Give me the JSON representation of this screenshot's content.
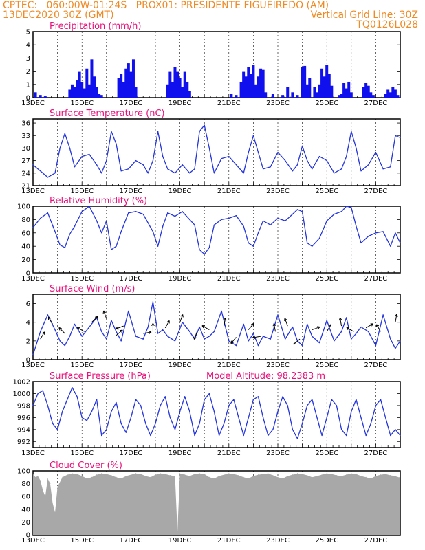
{
  "header": {
    "line1": "CPTEC:   060:00W-01:24S   PROX01: PRESIDENTE FIGUEIREDO (AM)",
    "line2_left": "13DEC2020 30Z (GMT)",
    "line2_right": "Vertical Grid Line: 30Z",
    "line3_right": "TQ0126L028"
  },
  "colors": {
    "header": "#f08a24",
    "title": "#e8107a",
    "line": "#2233dd",
    "bar": "#1010ee",
    "cloud": "#a8a8a8"
  },
  "chart_data": [
    {
      "type": "bar",
      "title": "Precipitation (mm/h)",
      "x_ticks": [
        "13DEC",
        "15DEC",
        "17DEC",
        "19DEC",
        "21DEC",
        "23DEC",
        "25DEC",
        "27DEC"
      ],
      "y_ticks": [
        "0",
        "1",
        "2",
        "3",
        "4",
        "5"
      ],
      "ylim": [
        0,
        5
      ],
      "xlim_days": [
        0,
        15
      ],
      "x_days": [
        0.1,
        0.3,
        0.5,
        1.5,
        1.6,
        1.7,
        1.8,
        1.9,
        2.0,
        2.1,
        2.2,
        2.3,
        2.4,
        2.5,
        2.6,
        2.7,
        2.8,
        3.5,
        3.6,
        3.7,
        3.8,
        3.9,
        4.0,
        4.1,
        4.2,
        5.5,
        5.6,
        5.7,
        5.8,
        5.9,
        6.0,
        6.1,
        6.2,
        6.3,
        6.4,
        8.1,
        8.3,
        8.5,
        8.6,
        8.7,
        8.8,
        8.9,
        9.0,
        9.1,
        9.2,
        9.3,
        9.4,
        9.5,
        9.8,
        10.2,
        10.4,
        10.6,
        10.8,
        11.0,
        11.1,
        11.2,
        11.3,
        11.5,
        11.6,
        11.7,
        11.8,
        11.9,
        12.0,
        12.1,
        12.2,
        12.5,
        12.6,
        12.7,
        12.8,
        12.9,
        13.0,
        13.5,
        13.6,
        13.7,
        13.8,
        13.9,
        14.4,
        14.5,
        14.6,
        14.7,
        14.8,
        14.9
      ],
      "values": [
        0.4,
        0.2,
        0.1,
        0.6,
        1.0,
        0.8,
        1.3,
        2.0,
        1.2,
        0.7,
        2.2,
        1.0,
        2.9,
        1.6,
        0.8,
        0.3,
        0.2,
        1.5,
        1.8,
        1.2,
        2.2,
        2.6,
        2.0,
        2.9,
        0.8,
        1.0,
        2.0,
        1.2,
        2.3,
        2.0,
        1.5,
        0.8,
        2.0,
        1.2,
        0.5,
        0.3,
        0.2,
        1.2,
        2.0,
        1.6,
        2.3,
        1.8,
        2.5,
        1.0,
        1.6,
        2.2,
        2.1,
        0.4,
        0.3,
        0.2,
        0.8,
        0.4,
        0.2,
        2.3,
        2.4,
        1.0,
        1.5,
        0.8,
        0.4,
        1.0,
        2.2,
        1.6,
        2.5,
        1.8,
        0.9,
        0.2,
        0.3,
        1.1,
        0.7,
        1.2,
        0.4,
        0.8,
        1.1,
        0.9,
        0.4,
        0.2,
        0.3,
        0.6,
        0.4,
        0.8,
        0.6,
        0.2
      ]
    },
    {
      "type": "line",
      "title": "Surface Temperature (nC)",
      "x_ticks": [
        "13DEC",
        "15DEC",
        "17DEC",
        "19DEC",
        "21DEC",
        "23DEC",
        "25DEC",
        "27DEC"
      ],
      "y_ticks": [
        "21",
        "24",
        "27",
        "30",
        "33",
        "36"
      ],
      "ylim": [
        21,
        37
      ],
      "xlim_days": [
        0,
        15
      ],
      "x_days": [
        0,
        0.3,
        0.6,
        0.9,
        1.1,
        1.3,
        1.5,
        1.7,
        2.0,
        2.3,
        2.6,
        2.8,
        3.0,
        3.2,
        3.4,
        3.6,
        3.9,
        4.2,
        4.5,
        4.7,
        4.9,
        5.1,
        5.3,
        5.5,
        5.8,
        6.1,
        6.4,
        6.6,
        6.8,
        7.0,
        7.2,
        7.4,
        7.7,
        8.0,
        8.3,
        8.6,
        8.8,
        9.0,
        9.2,
        9.4,
        9.7,
        10.0,
        10.3,
        10.6,
        10.8,
        11.0,
        11.2,
        11.4,
        11.7,
        12.0,
        12.3,
        12.6,
        12.8,
        13.0,
        13.2,
        13.4,
        13.7,
        14.0,
        14.3,
        14.6,
        14.8,
        15.0
      ],
      "values": [
        26,
        24.5,
        23,
        24,
        30,
        33.5,
        30,
        25.5,
        28,
        28.5,
        26,
        24,
        27,
        34,
        31,
        24.5,
        25,
        27,
        26,
        24,
        27,
        34,
        28,
        25,
        24,
        26,
        24,
        25,
        34,
        35.5,
        30,
        24,
        27.5,
        28,
        26,
        24,
        29,
        33,
        29,
        25,
        25.5,
        29,
        27,
        24.5,
        26,
        30.5,
        27,
        25,
        28,
        27,
        24,
        25,
        28,
        34,
        30,
        24.5,
        26,
        29,
        25,
        25.5,
        33,
        32.5
      ]
    },
    {
      "type": "line",
      "title": "Relative Humidity (%)",
      "x_ticks": [
        "13DEC",
        "15DEC",
        "17DEC",
        "19DEC",
        "21DEC",
        "23DEC",
        "25DEC",
        "27DEC"
      ],
      "y_ticks": [
        "0",
        "20",
        "40",
        "60",
        "80",
        "100"
      ],
      "ylim": [
        0,
        100
      ],
      "xlim_days": [
        0,
        15
      ],
      "x_days": [
        0,
        0.3,
        0.6,
        0.9,
        1.1,
        1.3,
        1.5,
        1.7,
        2.0,
        2.3,
        2.6,
        2.8,
        3.0,
        3.2,
        3.4,
        3.6,
        3.9,
        4.2,
        4.5,
        4.7,
        4.9,
        5.1,
        5.3,
        5.5,
        5.8,
        6.1,
        6.4,
        6.6,
        6.8,
        7.0,
        7.2,
        7.4,
        7.7,
        8.0,
        8.3,
        8.6,
        8.8,
        9.0,
        9.2,
        9.4,
        9.7,
        10.0,
        10.3,
        10.6,
        10.8,
        11.0,
        11.2,
        11.4,
        11.7,
        12.0,
        12.3,
        12.6,
        12.8,
        13.0,
        13.2,
        13.4,
        13.7,
        14.0,
        14.3,
        14.6,
        14.8,
        15.0
      ],
      "values": [
        68,
        82,
        90,
        62,
        42,
        38,
        58,
        70,
        92,
        100,
        78,
        60,
        78,
        35,
        40,
        62,
        90,
        92,
        88,
        75,
        62,
        40,
        70,
        90,
        85,
        92,
        80,
        72,
        35,
        28,
        38,
        72,
        80,
        82,
        86,
        70,
        45,
        40,
        60,
        78,
        72,
        82,
        78,
        88,
        95,
        92,
        45,
        40,
        52,
        78,
        88,
        92,
        100,
        98,
        70,
        45,
        55,
        60,
        62,
        40,
        60,
        45
      ]
    },
    {
      "type": "line",
      "title": "Surface Wind (m/s)",
      "x_ticks": [
        "13DEC",
        "15DEC",
        "17DEC",
        "19DEC",
        "21DEC",
        "23DEC",
        "25DEC",
        "27DEC"
      ],
      "y_ticks": [
        "0",
        "2",
        "4",
        "6"
      ],
      "ylim": [
        0,
        7
      ],
      "xlim_days": [
        0,
        15
      ],
      "x_days": [
        0,
        0.3,
        0.6,
        0.9,
        1.1,
        1.3,
        1.5,
        1.7,
        2.0,
        2.3,
        2.6,
        2.8,
        3.0,
        3.2,
        3.4,
        3.6,
        3.9,
        4.2,
        4.5,
        4.7,
        4.9,
        5.1,
        5.3,
        5.5,
        5.8,
        6.1,
        6.4,
        6.6,
        6.8,
        7.0,
        7.2,
        7.4,
        7.7,
        8.0,
        8.3,
        8.6,
        8.8,
        9.0,
        9.2,
        9.4,
        9.7,
        10.0,
        10.3,
        10.6,
        10.8,
        11.0,
        11.2,
        11.4,
        11.7,
        12.0,
        12.3,
        12.6,
        12.8,
        13.0,
        13.2,
        13.4,
        13.7,
        14.0,
        14.3,
        14.6,
        14.8,
        15.0
      ],
      "values": [
        0.5,
        3.0,
        4.8,
        3.2,
        2.0,
        1.5,
        2.5,
        3.8,
        2.5,
        3.5,
        4.5,
        3.0,
        2.2,
        4.2,
        3.0,
        2.0,
        5.2,
        2.5,
        2.2,
        3.5,
        6.2,
        2.8,
        3.2,
        2.5,
        2.0,
        4.0,
        3.0,
        2.2,
        3.5,
        2.2,
        2.5,
        3.0,
        5.2,
        2.0,
        1.5,
        3.8,
        2.0,
        2.8,
        1.5,
        2.5,
        2.2,
        4.8,
        2.2,
        3.5,
        2.0,
        1.5,
        3.8,
        2.5,
        1.8,
        4.2,
        2.0,
        3.0,
        4.5,
        2.2,
        2.8,
        3.5,
        3.0,
        1.5,
        4.8,
        2.2,
        1.2,
        2.0
      ]
    },
    {
      "type": "line",
      "title": "Surface Pressure (hPa)",
      "annotation": "Model Altitude: 98.2383 m",
      "x_ticks": [
        "13DEC",
        "15DEC",
        "17DEC",
        "19DEC",
        "21DEC",
        "23DEC",
        "25DEC",
        "27DEC"
      ],
      "y_ticks": [
        "992",
        "994",
        "996",
        "998",
        "1000",
        "1002"
      ],
      "ylim": [
        991,
        1002
      ],
      "xlim_days": [
        0,
        15
      ],
      "x_days": [
        0,
        0.2,
        0.4,
        0.6,
        0.8,
        1.0,
        1.2,
        1.4,
        1.6,
        1.8,
        2.0,
        2.2,
        2.4,
        2.6,
        2.8,
        3.0,
        3.2,
        3.4,
        3.6,
        3.8,
        4.0,
        4.2,
        4.4,
        4.6,
        4.8,
        5.0,
        5.2,
        5.4,
        5.6,
        5.8,
        6.0,
        6.2,
        6.4,
        6.6,
        6.8,
        7.0,
        7.2,
        7.4,
        7.6,
        7.8,
        8.0,
        8.2,
        8.4,
        8.6,
        8.8,
        9.0,
        9.2,
        9.4,
        9.6,
        9.8,
        10.0,
        10.2,
        10.4,
        10.6,
        10.8,
        11.0,
        11.2,
        11.4,
        11.6,
        11.8,
        12.0,
        12.2,
        12.4,
        12.6,
        12.8,
        13.0,
        13.2,
        13.4,
        13.6,
        13.8,
        14.0,
        14.2,
        14.4,
        14.6,
        14.8,
        15.0
      ],
      "values": [
        998,
        1000,
        1000.5,
        998,
        995,
        994,
        997,
        999,
        1001,
        999.5,
        996,
        995.5,
        997,
        999,
        993,
        994,
        997,
        998.5,
        995,
        993.5,
        996,
        999,
        998,
        995,
        993,
        995,
        998,
        999.5,
        996,
        994,
        997,
        999.5,
        997,
        993,
        995,
        999,
        1000,
        997,
        993,
        995,
        998,
        999,
        996,
        993,
        996,
        999,
        999.5,
        996,
        993,
        994,
        997,
        999.5,
        998,
        994,
        992.5,
        995,
        998,
        999,
        996,
        993,
        996,
        999,
        998,
        994,
        993,
        997,
        999,
        996,
        993,
        995,
        998,
        999,
        996,
        993,
        994,
        993
      ]
    },
    {
      "type": "bar",
      "title": "Cloud Cover (%)",
      "x_ticks": [
        "13DEC",
        "15DEC",
        "17DEC",
        "19DEC",
        "21DEC",
        "23DEC",
        "25DEC",
        "27DEC"
      ],
      "y_ticks": [
        "0",
        "20",
        "40",
        "60",
        "80",
        "100"
      ],
      "ylim": [
        0,
        100
      ],
      "xlim_days": [
        0,
        15
      ],
      "x_days": [
        0,
        0.1,
        0.2,
        0.3,
        0.4,
        0.5,
        0.6,
        0.7,
        0.8,
        0.9,
        1.0,
        1.2,
        1.4,
        1.6,
        1.8,
        2.0,
        2.2,
        2.4,
        2.6,
        2.8,
        3.0,
        3.2,
        3.4,
        3.6,
        3.8,
        4.0,
        4.2,
        4.4,
        4.6,
        4.8,
        5.0,
        5.2,
        5.4,
        5.6,
        5.8,
        5.9,
        6.0,
        6.2,
        6.4,
        6.6,
        6.8,
        7.0,
        7.2,
        7.4,
        7.6,
        7.8,
        8.0,
        8.2,
        8.4,
        8.6,
        8.8,
        9.0,
        9.2,
        9.4,
        9.6,
        9.8,
        10.0,
        10.2,
        10.4,
        10.6,
        10.8,
        11.0,
        11.2,
        11.4,
        11.6,
        11.8,
        12.0,
        12.2,
        12.4,
        12.6,
        12.8,
        13.0,
        13.2,
        13.4,
        13.6,
        13.8,
        14.0,
        14.2,
        14.4,
        14.6,
        14.8,
        14.9
      ],
      "values": [
        95,
        90,
        92,
        85,
        70,
        60,
        88,
        80,
        50,
        35,
        75,
        90,
        94,
        96,
        95,
        92,
        88,
        90,
        94,
        96,
        95,
        93,
        90,
        88,
        92,
        94,
        96,
        95,
        92,
        90,
        94,
        96,
        95,
        93,
        92,
        5,
        96,
        94,
        92,
        95,
        96,
        95,
        90,
        88,
        92,
        94,
        96,
        95,
        93,
        90,
        88,
        92,
        94,
        95,
        96,
        93,
        90,
        88,
        92,
        94,
        96,
        95,
        93,
        90,
        92,
        94,
        96,
        95,
        93,
        92,
        94,
        96,
        95,
        92,
        90,
        88,
        92,
        94,
        95,
        93,
        92,
        90
      ]
    }
  ],
  "wind_arrows": [
    {
      "x_days": 0.3,
      "speed": 2.2,
      "angle": -60
    },
    {
      "x_days": 0.8,
      "speed": 3.8,
      "angle": -120
    },
    {
      "x_days": 1.3,
      "speed": 2.8,
      "angle": -135
    },
    {
      "x_days": 2.1,
      "speed": 3.0,
      "angle": -150
    },
    {
      "x_days": 2.4,
      "speed": 4.0,
      "angle": -45
    },
    {
      "x_days": 3.0,
      "speed": 4.4,
      "angle": -110
    },
    {
      "x_days": 3.4,
      "speed": 2.6,
      "angle": -40
    },
    {
      "x_days": 3.7,
      "speed": 3.6,
      "angle": 160
    },
    {
      "x_days": 4.5,
      "speed": 2.8,
      "angle": -10
    },
    {
      "x_days": 4.9,
      "speed": 3.0,
      "angle": -90
    },
    {
      "x_days": 5.4,
      "speed": 3.4,
      "angle": -60
    },
    {
      "x_days": 6.0,
      "speed": 4.0,
      "angle": -70
    },
    {
      "x_days": 6.7,
      "speed": 3.0,
      "angle": 110
    },
    {
      "x_days": 7.2,
      "speed": 3.2,
      "angle": -150
    },
    {
      "x_days": 7.8,
      "speed": 3.6,
      "angle": -80
    },
    {
      "x_days": 8.3,
      "speed": 2.4,
      "angle": 130
    },
    {
      "x_days": 8.8,
      "speed": 3.2,
      "angle": -50
    },
    {
      "x_days": 9.3,
      "speed": 2.5,
      "angle": 170
    },
    {
      "x_days": 9.9,
      "speed": 3.0,
      "angle": -100
    },
    {
      "x_days": 10.4,
      "speed": 3.6,
      "angle": -110
    },
    {
      "x_days": 10.9,
      "speed": 2.2,
      "angle": 140
    },
    {
      "x_days": 11.4,
      "speed": 3.2,
      "angle": -20
    },
    {
      "x_days": 12.0,
      "speed": 3.0,
      "angle": -60
    },
    {
      "x_days": 12.6,
      "speed": 3.6,
      "angle": -100
    },
    {
      "x_days": 13.1,
      "speed": 3.0,
      "angle": -150
    },
    {
      "x_days": 13.6,
      "speed": 3.4,
      "angle": -30
    },
    {
      "x_days": 14.2,
      "speed": 3.0,
      "angle": -120
    },
    {
      "x_days": 14.8,
      "speed": 4.0,
      "angle": -80
    }
  ]
}
